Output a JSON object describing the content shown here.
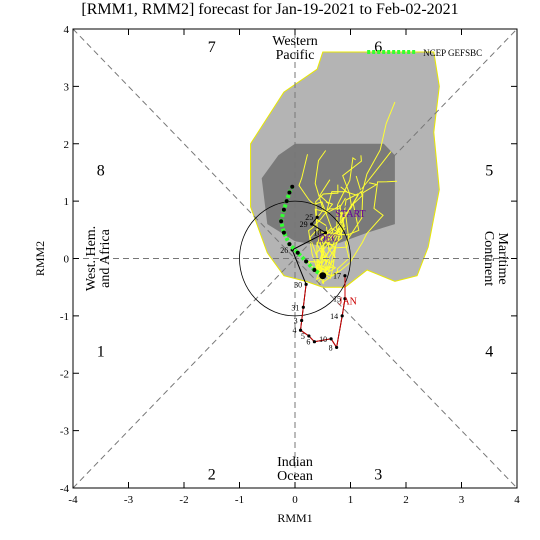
{
  "chart_data": {
    "type": "scatter",
    "title": "[RMM1, RMM2] forecast for Jan-19-2021 to Feb-02-2021",
    "xlabel": "RMM1",
    "ylabel": "RMM2",
    "xlim": [
      -4,
      4
    ],
    "ylim": [
      -4,
      4
    ],
    "xticks": [
      "-4",
      "-3",
      "-2",
      "-1",
      "0",
      "1",
      "2",
      "3",
      "4"
    ],
    "yticks": [
      "-4",
      "-3",
      "-2",
      "-1",
      "0",
      "1",
      "2",
      "3",
      "4"
    ],
    "phase_numbers": [
      {
        "label": "1",
        "x": -3.5,
        "y": -1.6
      },
      {
        "label": "2",
        "x": -1.5,
        "y": -3.75
      },
      {
        "label": "3",
        "x": 1.5,
        "y": -3.75
      },
      {
        "label": "4",
        "x": 3.5,
        "y": -1.6
      },
      {
        "label": "5",
        "x": 3.5,
        "y": 1.55
      },
      {
        "label": "6",
        "x": 1.5,
        "y": 3.7
      },
      {
        "label": "7",
        "x": -1.5,
        "y": 3.7
      },
      {
        "label": "8",
        "x": -3.5,
        "y": 1.55
      }
    ],
    "region_labels": {
      "top": [
        "Western",
        "Pacific"
      ],
      "bottom": [
        "Indian",
        "Ocean"
      ],
      "left": [
        "West. Hem.",
        "and Africa"
      ],
      "right": [
        "Maritime",
        "Continent"
      ]
    },
    "legend": {
      "label": "NCEP GEFSBC",
      "color": "#33ff33",
      "position": "top-right"
    },
    "ensemble_plume_outer": [
      [
        0.5,
        3.6
      ],
      [
        2.5,
        3.6
      ],
      [
        2.6,
        3.0
      ],
      [
        2.5,
        2.2
      ],
      [
        2.6,
        1.2
      ],
      [
        2.4,
        0.2
      ],
      [
        2.2,
        -0.3
      ],
      [
        1.8,
        -0.4
      ],
      [
        1.3,
        -0.2
      ],
      [
        0.9,
        -0.5
      ],
      [
        0.5,
        -0.5
      ],
      [
        0.2,
        -0.4
      ],
      [
        -0.2,
        -0.3
      ],
      [
        -0.5,
        0.1
      ],
      [
        -0.8,
        0.9
      ],
      [
        -0.8,
        2.0
      ],
      [
        -0.2,
        2.9
      ],
      [
        0.4,
        3.3
      ]
    ],
    "ensemble_plume_inner": [
      [
        0.0,
        2.0
      ],
      [
        1.6,
        2.0
      ],
      [
        1.8,
        1.8
      ],
      [
        1.8,
        0.6
      ],
      [
        1.3,
        0.45
      ],
      [
        0.6,
        0.2
      ],
      [
        0.0,
        0.3
      ],
      [
        -0.5,
        0.6
      ],
      [
        -0.6,
        1.4
      ],
      [
        -0.3,
        1.8
      ]
    ],
    "observed_path": {
      "color": "#000000",
      "labels_color": "#cc0000",
      "month_labels": [
        {
          "label": "DEC",
          "x": 0.6,
          "y": 0.3,
          "color": "#660099"
        },
        {
          "label": "JAN",
          "x": 0.95,
          "y": -0.8,
          "color": "#cc0000"
        },
        {
          "label": "START",
          "x": 1.0,
          "y": 0.72,
          "color": "#660099"
        }
      ],
      "points": [
        {
          "day": "25",
          "x": 0.4,
          "y": 0.72
        },
        {
          "day": "29",
          "x": 0.3,
          "y": 0.6
        },
        {
          "day": "10",
          "x": 0.55,
          "y": 0.45
        },
        {
          "day": "26",
          "x": -0.05,
          "y": 0.15
        },
        {
          "day": "30",
          "x": 0.2,
          "y": -0.45
        },
        {
          "day": "31",
          "x": 0.15,
          "y": -0.85
        },
        {
          "day": "3",
          "x": 0.12,
          "y": -1.08
        },
        {
          "day": "4",
          "x": 0.1,
          "y": -1.25
        },
        {
          "day": "5",
          "x": 0.25,
          "y": -1.35
        },
        {
          "day": "6",
          "x": 0.35,
          "y": -1.45
        },
        {
          "day": "10",
          "x": 0.65,
          "y": -1.4
        },
        {
          "day": "8",
          "x": 0.75,
          "y": -1.55
        },
        {
          "day": "14",
          "x": 0.85,
          "y": -1.0
        },
        {
          "day": "15",
          "x": 0.9,
          "y": -0.7
        },
        {
          "day": "17",
          "x": 0.9,
          "y": -0.3
        }
      ]
    },
    "forecast_mean": {
      "name": "NCEP GEFSBC",
      "color": "#33ff33",
      "points": [
        [
          0.5,
          -0.3
        ],
        [
          0.35,
          -0.2
        ],
        [
          0.2,
          -0.05
        ],
        [
          0.05,
          0.1
        ],
        [
          -0.1,
          0.25
        ],
        [
          -0.2,
          0.45
        ],
        [
          -0.25,
          0.65
        ],
        [
          -0.2,
          0.85
        ],
        [
          -0.15,
          1.0
        ],
        [
          -0.1,
          1.15
        ],
        [
          -0.05,
          1.25
        ]
      ]
    },
    "amplitude_circle_radius": 1.0
  }
}
